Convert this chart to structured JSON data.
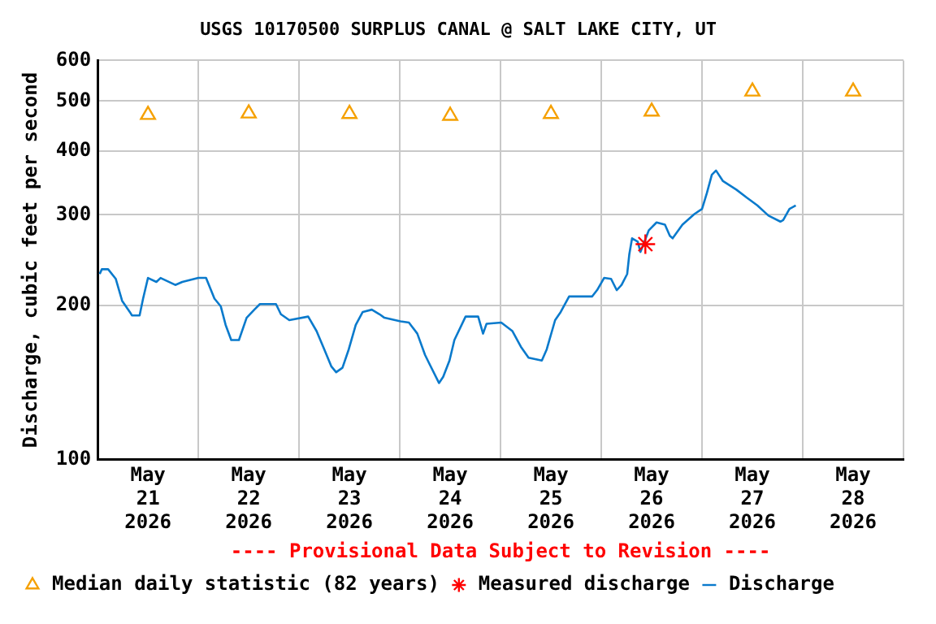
{
  "chart_data": {
    "type": "line",
    "title": "USGS 10170500 SURPLUS CANAL @ SALT LAKE CITY, UT",
    "ylabel": "Discharge, cubic feet per second",
    "xlim": [
      "2026-05-21T00:00",
      "2026-05-29T00:00"
    ],
    "xticks": [
      {
        "value": "2026-05-21T00:00",
        "label": null
      },
      {
        "value": "2026-05-21T12:00",
        "label": "May\n21\n2026"
      },
      {
        "value": "2026-05-22T00:00",
        "label": null
      },
      {
        "value": "2026-05-22T12:00",
        "label": "May\n22\n2026"
      },
      {
        "value": "2026-05-23T00:00",
        "label": null
      },
      {
        "value": "2026-05-23T12:00",
        "label": "May\n23\n2026"
      },
      {
        "value": "2026-05-24T00:00",
        "label": null
      },
      {
        "value": "2026-05-24T12:00",
        "label": "May\n24\n2026"
      },
      {
        "value": "2026-05-25T00:00",
        "label": null
      },
      {
        "value": "2026-05-25T12:00",
        "label": "May\n25\n2026"
      },
      {
        "value": "2026-05-26T00:00",
        "label": null
      },
      {
        "value": "2026-05-26T12:00",
        "label": "May\n26\n2026"
      },
      {
        "value": "2026-05-27T00:00",
        "label": null
      },
      {
        "value": "2026-05-27T12:00",
        "label": "May\n27\n2026"
      },
      {
        "value": "2026-05-28T00:00",
        "label": null
      },
      {
        "value": "2026-05-28T12:00",
        "label": "May\n28\n2026"
      },
      {
        "value": "2026-05-29T00:00",
        "label": null
      }
    ],
    "ylim": [
      100,
      600
    ],
    "yticks": [
      100,
      200,
      300,
      400,
      500,
      600
    ],
    "log": "y",
    "grid": true,
    "legend": "bottom",
    "annotations": [
      "---- Provisional Data Subject to Revision ----"
    ],
    "series": [
      {
        "name": "Median daily statistic (82 years)",
        "type": "scatter",
        "marker": "triangle",
        "color": "#f5a000",
        "x": [
          "2026-05-21T12:00",
          "2026-05-22T12:00",
          "2026-05-23T12:00",
          "2026-05-24T12:00",
          "2026-05-25T12:00",
          "2026-05-26T12:00",
          "2026-05-27T12:00",
          "2026-05-28T12:00"
        ],
        "values": [
          470,
          473,
          472,
          468,
          472,
          477,
          522,
          522
        ]
      },
      {
        "name": "Measured discharge",
        "type": "scatter",
        "marker": "cross",
        "color": "#ff0000",
        "x": [
          "2026-05-26T10:30"
        ],
        "values": [
          263
        ]
      },
      {
        "name": "Discharge",
        "type": "line",
        "marker": "none",
        "line_style": "solid",
        "color": "#0a7acc",
        "x": [
          "2026-05-21T00:30",
          "2026-05-21T01:00",
          "2026-05-21T02:30",
          "2026-05-21T04:20",
          "2026-05-21T05:50",
          "2026-05-21T07:40",
          "2026-05-21T08:10",
          "2026-05-21T10:00",
          "2026-05-21T10:50",
          "2026-05-21T12:00",
          "2026-05-21T14:00",
          "2026-05-21T15:00",
          "2026-05-21T18:30",
          "2026-05-21T20:10",
          "2026-05-22T00:00",
          "2026-05-22T01:50",
          "2026-05-22T03:50",
          "2026-05-22T05:20",
          "2026-05-22T06:30",
          "2026-05-22T07:50",
          "2026-05-22T09:40",
          "2026-05-22T11:30",
          "2026-05-22T13:20",
          "2026-05-22T14:40",
          "2026-05-22T18:30",
          "2026-05-22T19:40",
          "2026-05-22T21:40",
          "2026-05-23T02:10",
          "2026-05-23T04:10",
          "2026-05-23T06:00",
          "2026-05-23T07:40",
          "2026-05-23T08:50",
          "2026-05-23T10:20",
          "2026-05-23T11:50",
          "2026-05-23T13:30",
          "2026-05-23T15:10",
          "2026-05-23T17:20",
          "2026-05-23T19:10",
          "2026-05-23T20:20",
          "2026-05-24T00:10",
          "2026-05-24T02:10",
          "2026-05-24T04:10",
          "2026-05-24T06:00",
          "2026-05-24T07:10",
          "2026-05-24T09:20",
          "2026-05-24T10:20",
          "2026-05-24T11:50",
          "2026-05-24T13:00",
          "2026-05-24T15:40",
          "2026-05-24T18:40",
          "2026-05-24T19:50",
          "2026-05-24T20:40",
          "2026-05-25T00:10",
          "2026-05-25T02:50",
          "2026-05-25T04:50",
          "2026-05-25T06:40",
          "2026-05-25T09:50",
          "2026-05-25T11:00",
          "2026-05-25T13:00",
          "2026-05-25T14:20",
          "2026-05-25T16:20",
          "2026-05-25T21:50",
          "2026-05-25T23:00",
          "2026-05-26T00:40",
          "2026-05-26T02:20",
          "2026-05-26T03:40",
          "2026-05-26T04:50",
          "2026-05-26T06:10",
          "2026-05-26T06:40",
          "2026-05-26T07:20",
          "2026-05-26T08:40",
          "2026-05-26T09:20",
          "2026-05-26T11:20",
          "2026-05-26T13:10",
          "2026-05-26T15:10",
          "2026-05-26T16:20",
          "2026-05-26T17:00",
          "2026-05-26T19:20",
          "2026-05-26T22:10",
          "2026-05-27T00:00",
          "2026-05-27T01:10",
          "2026-05-27T02:20",
          "2026-05-27T03:20",
          "2026-05-27T05:00",
          "2026-05-27T08:10",
          "2026-05-27T10:40",
          "2026-05-27T13:10",
          "2026-05-27T15:50",
          "2026-05-27T18:40",
          "2026-05-27T19:20",
          "2026-05-27T20:50",
          "2026-05-27T22:20"
        ],
        "values": [
          230,
          235,
          235,
          225,
          204,
          194,
          191,
          191,
          206,
          226,
          222,
          226,
          219,
          222,
          226,
          226,
          206,
          199,
          183,
          171,
          171,
          189,
          196,
          201,
          201,
          192,
          187,
          190,
          178,
          164,
          152,
          148,
          151,
          164,
          183,
          194,
          196,
          192,
          189,
          186,
          185,
          176,
          160,
          153,
          141,
          145,
          156,
          171,
          190,
          190,
          176,
          184,
          185,
          178,
          166,
          158,
          156,
          164,
          187,
          194,
          208,
          208,
          214,
          226,
          225,
          214,
          219,
          230,
          251,
          270,
          266,
          254,
          280,
          290,
          287,
          273,
          270,
          287,
          301,
          308,
          331,
          359,
          366,
          349,
          336,
          324,
          313,
          299,
          291,
          293,
          308,
          313
        ]
      }
    ]
  }
}
